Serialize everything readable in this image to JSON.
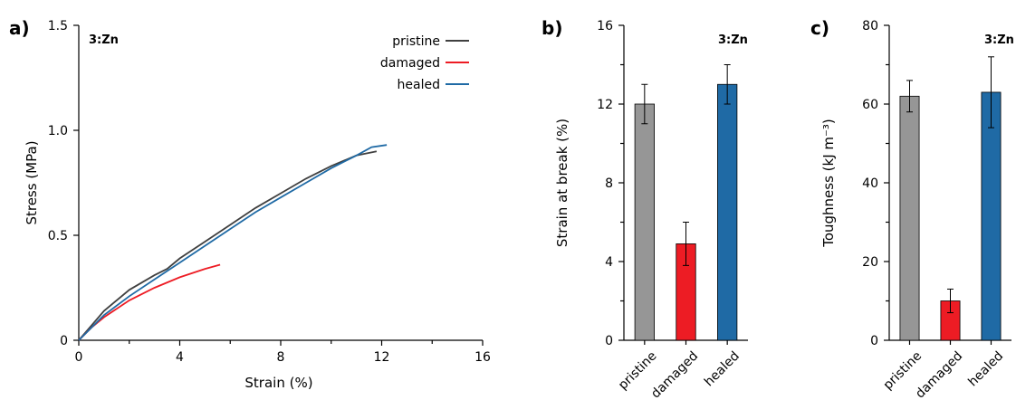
{
  "colors": {
    "pristine_line": "#404040",
    "damaged": "#ed1c24",
    "healed": "#1f6aa5",
    "pristine_bar": "#969696"
  },
  "chart_data": [
    {
      "type": "line",
      "panel_label": "a)",
      "annotation": "3:Zn",
      "xlabel": "Strain (%)",
      "ylabel": "Stress (MPa)",
      "xlim": [
        0,
        16
      ],
      "ylim": [
        0,
        1.5
      ],
      "xticks": [
        "0",
        "4",
        "8",
        "12",
        "16"
      ],
      "yticks": [
        "0",
        "0.5",
        "1.0",
        "1.5"
      ],
      "legend_position": "top-right",
      "series": [
        {
          "name": "pristine",
          "color": "#404040",
          "x": [
            0,
            0.5,
            1,
            2,
            3,
            3.5,
            4,
            5,
            6,
            7,
            8,
            9,
            10,
            11,
            11.8
          ],
          "y": [
            0,
            0.07,
            0.14,
            0.24,
            0.31,
            0.34,
            0.39,
            0.47,
            0.55,
            0.63,
            0.7,
            0.77,
            0.83,
            0.88,
            0.9
          ]
        },
        {
          "name": "damaged",
          "color": "#ed1c24",
          "x": [
            0,
            0.5,
            1,
            2,
            3,
            4,
            5,
            5.6
          ],
          "y": [
            0,
            0.06,
            0.11,
            0.19,
            0.25,
            0.3,
            0.34,
            0.36
          ]
        },
        {
          "name": "healed",
          "color": "#1f6aa5",
          "x": [
            0,
            0.5,
            1,
            2,
            3,
            4,
            5,
            6,
            7,
            8,
            9,
            10,
            11,
            11.6,
            12.2
          ],
          "y": [
            0,
            0.06,
            0.12,
            0.21,
            0.29,
            0.37,
            0.45,
            0.53,
            0.61,
            0.68,
            0.75,
            0.82,
            0.88,
            0.92,
            0.93
          ]
        }
      ]
    },
    {
      "type": "bar",
      "panel_label": "b)",
      "annotation": "3:Zn",
      "ylabel": "Strain at break (%)",
      "categories": [
        "pristine",
        "damaged",
        "healed"
      ],
      "values": [
        12,
        4.9,
        13
      ],
      "errors": [
        1,
        1.1,
        1
      ],
      "colors": [
        "#969696",
        "#ed1c24",
        "#1f6aa5"
      ],
      "ylim": [
        0,
        16
      ],
      "yticks": [
        "0",
        "4",
        "8",
        "12",
        "16"
      ]
    },
    {
      "type": "bar",
      "panel_label": "c)",
      "annotation": "3:Zn",
      "ylabel": "Toughness (kJ m⁻³)",
      "categories": [
        "pristine",
        "damaged",
        "healed"
      ],
      "values": [
        62,
        10,
        63
      ],
      "errors": [
        4,
        3,
        9
      ],
      "colors": [
        "#969696",
        "#ed1c24",
        "#1f6aa5"
      ],
      "ylim": [
        0,
        80
      ],
      "yticks": [
        "0",
        "20",
        "40",
        "60",
        "80"
      ]
    }
  ]
}
